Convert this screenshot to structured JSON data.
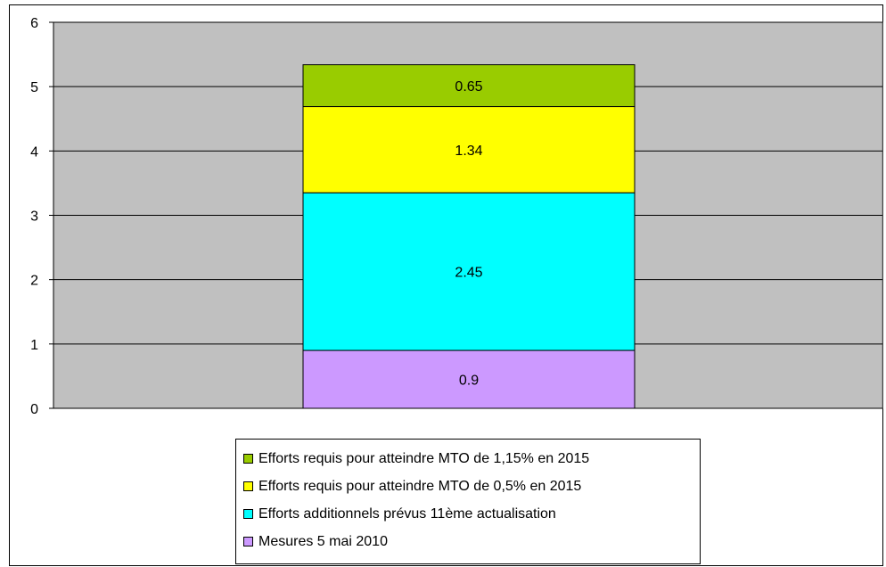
{
  "chart_data": {
    "type": "bar",
    "stacked": true,
    "categories": [
      ""
    ],
    "series": [
      {
        "name": "Mesures 5 mai 2010",
        "values": [
          0.9
        ],
        "color": "#cc99ff",
        "label": "0.9"
      },
      {
        "name": "Efforts additionnels prévus 11ème actualisation",
        "values": [
          2.45
        ],
        "color": "#00ffff",
        "label": "2.45"
      },
      {
        "name": "Efforts requis pour atteindre MTO de 0,5% en 2015",
        "values": [
          1.34
        ],
        "color": "#ffff00",
        "label": "1.34"
      },
      {
        "name": "Efforts requis pour atteindre MTO de 1,15% en 2015",
        "values": [
          0.65
        ],
        "color": "#99cc00",
        "label": "0.65"
      }
    ],
    "ylim": [
      0,
      6
    ],
    "yticks": [
      "0",
      "1",
      "2",
      "3",
      "4",
      "5",
      "6"
    ],
    "grid": true,
    "plot_background": "#c0c0c0",
    "legend_position": "bottom"
  },
  "legend": [
    {
      "label": "Efforts requis pour atteindre MTO de 1,15% en 2015",
      "color": "#99cc00"
    },
    {
      "label": "Efforts requis pour atteindre MTO de 0,5% en 2015",
      "color": "#ffff00"
    },
    {
      "label": "Efforts additionnels prévus 11ème actualisation",
      "color": "#00ffff"
    },
    {
      "label": "Mesures 5 mai 2010",
      "color": "#cc99ff"
    }
  ]
}
